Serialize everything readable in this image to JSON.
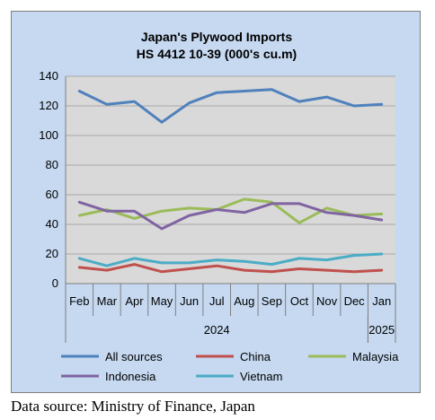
{
  "chart_data": {
    "type": "line",
    "title": "Japan's Plywood Imports",
    "subtitle": "HS 4412 10-39  (000's cu.m)",
    "categories": [
      "Feb",
      "Mar",
      "Apr",
      "May",
      "Jun",
      "Jul",
      "Aug",
      "Sep",
      "Oct",
      "Nov",
      "Dec",
      "Jan"
    ],
    "year_groups": [
      {
        "label": "2024",
        "from": "Feb",
        "to": "Dec"
      },
      {
        "label": "2025",
        "from": "Jan",
        "to": "Jan"
      }
    ],
    "ylim": [
      0,
      140
    ],
    "yticks": [
      0,
      20,
      40,
      60,
      80,
      100,
      120,
      140
    ],
    "grid": true,
    "legend_position": "bottom",
    "series": [
      {
        "name": "All sources",
        "color": "#4f81bd",
        "values": [
          130,
          121,
          123,
          109,
          122,
          129,
          130,
          131,
          123,
          126,
          120,
          121
        ]
      },
      {
        "name": "China",
        "color": "#c0504d",
        "values": [
          11,
          9,
          13,
          8,
          10,
          12,
          9,
          8,
          10,
          9,
          8,
          9
        ]
      },
      {
        "name": "Malaysia",
        "color": "#9bbb59",
        "values": [
          46,
          50,
          44,
          49,
          51,
          50,
          57,
          55,
          41,
          51,
          46,
          47
        ]
      },
      {
        "name": "Indonesia",
        "color": "#8064a2",
        "values": [
          55,
          49,
          49,
          37,
          46,
          50,
          48,
          54,
          54,
          48,
          46,
          43
        ]
      },
      {
        "name": "Vietnam",
        "color": "#4bacc6",
        "values": [
          17,
          12,
          17,
          14,
          14,
          16,
          15,
          13,
          17,
          16,
          19,
          20
        ]
      }
    ]
  },
  "source_note": "Data source: Ministry of Finance, Japan"
}
